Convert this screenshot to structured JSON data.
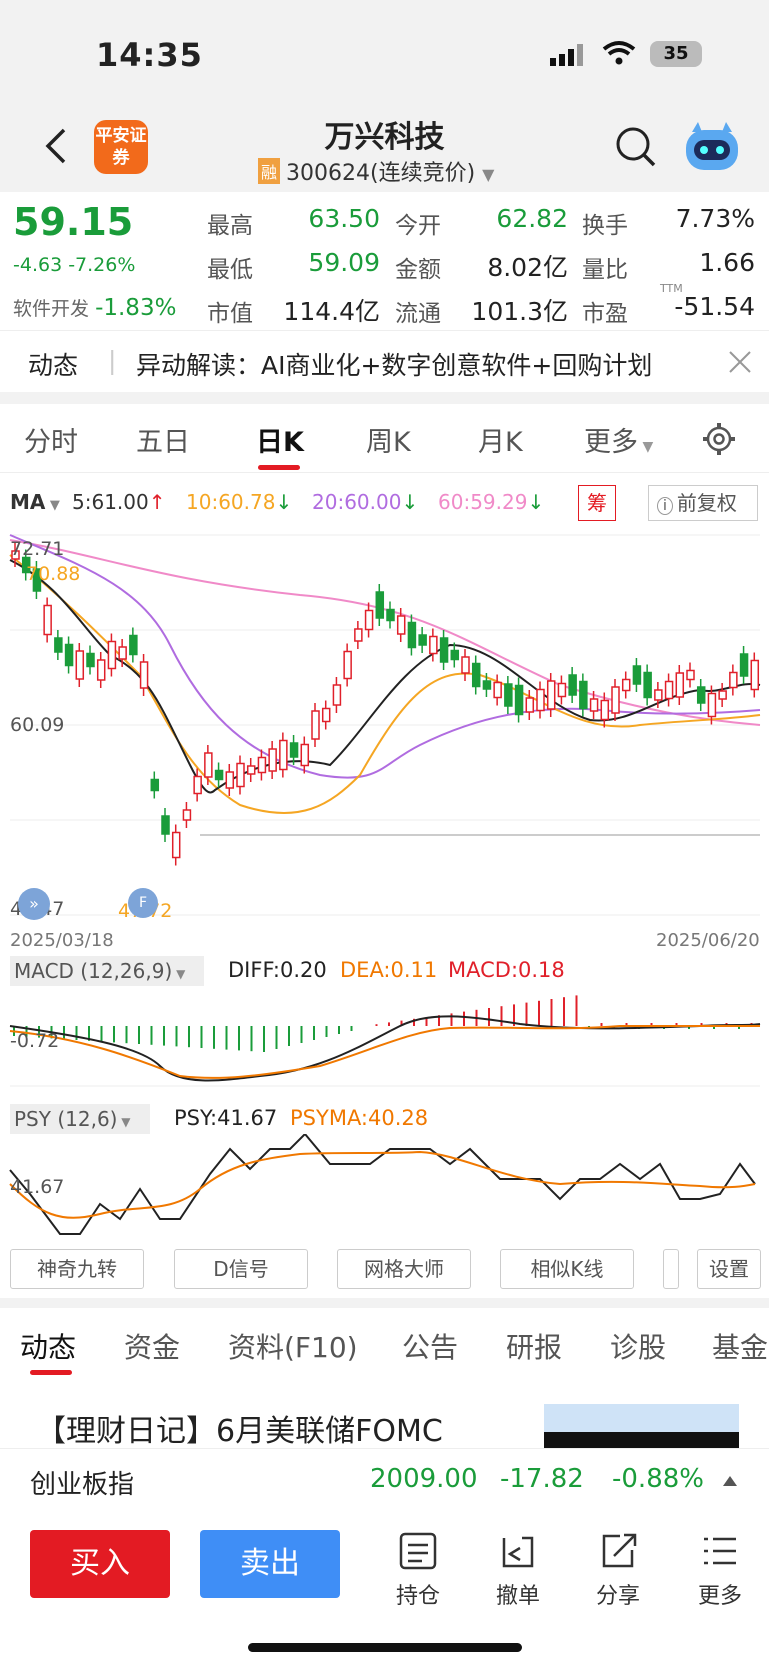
{
  "status_bar": {
    "time": "14:35",
    "battery": "35"
  },
  "header": {
    "broker_logo_text": "平安证券",
    "stock_name": "万兴科技",
    "margin_badge": "融",
    "stock_code": "300624(连续竞价)"
  },
  "quote": {
    "price": "59.15",
    "change": "-4.63 -7.26%",
    "sector_label": "软件开发",
    "sector_change": "-1.83%",
    "stats": [
      {
        "label": "最高",
        "value": "63.50",
        "color": "green"
      },
      {
        "label": "今开",
        "value": "62.82",
        "color": "green"
      },
      {
        "label": "换手",
        "value": "7.73%",
        "color": "black"
      },
      {
        "label": "最低",
        "value": "59.09",
        "color": "green"
      },
      {
        "label": "金额",
        "value": "8.02亿",
        "color": "black"
      },
      {
        "label": "量比",
        "value": "1.66",
        "color": "black"
      },
      {
        "label": "市值",
        "value": "114.4亿",
        "color": "black"
      },
      {
        "label": "流通",
        "value": "101.3亿",
        "color": "black"
      },
      {
        "label": "市盈",
        "value": "-51.54",
        "color": "black"
      }
    ],
    "pe_suffix": "TTM"
  },
  "news": {
    "tag": "动态",
    "text": "异动解读：AI商业化+数字创意软件+回购计划"
  },
  "chart_tabs": [
    "分时",
    "五日",
    "日K",
    "周K",
    "月K",
    "更多"
  ],
  "active_tab": "日K",
  "ma_line": {
    "label": "MA",
    "ma5": "5:61.00",
    "ma10": "10:60.78",
    "ma20": "20:60.00",
    "ma60": "60:59.29",
    "chip_btn": "筹",
    "adjust_btn": "前复权"
  },
  "kline": {
    "y_max": "72.71",
    "y_mid": "60.09",
    "y_min": "47.47",
    "price_high_marker": "70.88",
    "price_low_marker": "47.72",
    "date_start": "2025/03/18",
    "date_end": "2025/06/20"
  },
  "macd": {
    "label": "MACD (12,26,9)",
    "diff": "DIFF:0.20",
    "dea": "DEA:0.11",
    "macd": "MACD:0.18",
    "axis": "-0.72"
  },
  "psy": {
    "label": "PSY (12,6)",
    "psy": "PSY:41.67",
    "psyma": "PSYMA:40.28",
    "axis": "41.67"
  },
  "tool_buttons": [
    "神奇九转",
    "D信号",
    "网格大师",
    "相似K线",
    "设置"
  ],
  "bottom_tabs": [
    "动态",
    "资金",
    "资料(F10)",
    "公告",
    "研报",
    "诊股",
    "基金"
  ],
  "article_title": "【理财日记】6月美联储FOMC",
  "index_bar": {
    "name": "创业板指",
    "value": "2009.00",
    "change": "-17.82",
    "pct": "-0.88%"
  },
  "actions": {
    "buy": "买入",
    "sell": "卖出",
    "hold": "持仓",
    "cancel": "撤单",
    "share": "分享",
    "more": "更多"
  },
  "colors": {
    "up": "#e0202a",
    "down": "#1a9c3a",
    "ma5": "#333333",
    "ma10": "#f5a623",
    "ma20": "#b06ce0",
    "ma60": "#f08ac8"
  },
  "chart_data": {
    "type": "candlestick",
    "x_range": [
      "2025/03/18",
      "2025/06/20"
    ],
    "ylim": [
      47.47,
      72.71
    ],
    "reference_ticks": [
      72.71,
      60.09,
      47.47
    ],
    "series_visible": [
      "MA5",
      "MA10",
      "MA20",
      "MA60"
    ]
  }
}
